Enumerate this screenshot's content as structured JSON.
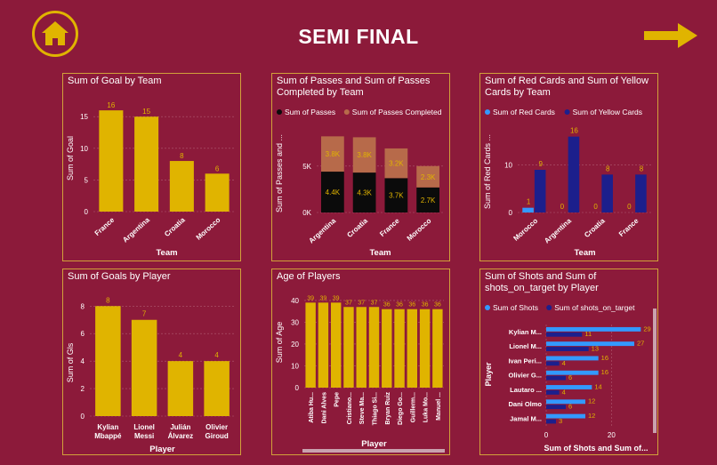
{
  "page": {
    "title": "SEMI FINAL",
    "home_icon": "home-icon",
    "next_icon": "arrow-right-icon",
    "accent_color": "#e0b400",
    "background_color": "#8c1a3a"
  },
  "chart_data": [
    {
      "id": "goal-by-team",
      "type": "bar",
      "title": "Sum of Goal by Team",
      "xlabel": "Team",
      "ylabel": "Sum of Goal",
      "categories": [
        "France",
        "Argentina",
        "Croatia",
        "Morocco"
      ],
      "values": [
        16,
        15,
        8,
        6
      ],
      "ylim": [
        0,
        17
      ],
      "yticks": [
        0,
        5,
        10,
        15
      ],
      "colors": [
        "#e0b400"
      ]
    },
    {
      "id": "passes-by-team",
      "type": "stacked-bar",
      "title": "Sum of Passes and Sum of Passes Completed by Team",
      "xlabel": "Team",
      "ylabel": "Sum of Passes and ...",
      "legend": [
        "Sum of Passes",
        "Sum of Passes Completed"
      ],
      "categories": [
        "Argentina",
        "Croatia",
        "France",
        "Morocco"
      ],
      "series": [
        {
          "name": "Sum of Passes",
          "values": [
            4.4,
            4.3,
            3.7,
            2.7
          ],
          "labels": [
            "4.4K",
            "4.3K",
            "3.7K",
            "2.7K"
          ]
        },
        {
          "name": "Sum of Passes Completed",
          "values": [
            3.8,
            3.8,
            3.2,
            2.3
          ],
          "labels": [
            "3.8K",
            "3.8K",
            "3.2K",
            "2.3K"
          ]
        }
      ],
      "ylim": [
        0,
        9
      ],
      "yticks": [
        0,
        5
      ],
      "ytick_labels": [
        "0K",
        "5K"
      ],
      "colors": [
        "#0b0b0b",
        "#b76a4a"
      ]
    },
    {
      "id": "cards-by-team",
      "type": "grouped-bar",
      "title": "Sum of Red Cards and Sum of Yellow Cards by Team",
      "xlabel": "Team",
      "ylabel": "Sum of Red Cards ...",
      "legend": [
        "Sum of Red Cards",
        "Sum of Yellow Cards"
      ],
      "categories": [
        "Morocco",
        "Argentina",
        "Croatia",
        "France"
      ],
      "series": [
        {
          "name": "Sum of Red Cards",
          "values": [
            1,
            0,
            0,
            0
          ]
        },
        {
          "name": "Sum of Yellow Cards",
          "values": [
            9,
            16,
            8,
            8
          ]
        }
      ],
      "ylim": [
        0,
        18
      ],
      "yticks": [
        0,
        10
      ],
      "colors": [
        "#3399ff",
        "#1c1f8c"
      ]
    },
    {
      "id": "goals-by-player",
      "type": "bar",
      "title": "Sum of Goals by Player",
      "xlabel": "Player",
      "ylabel": "Sum of Gls",
      "categories": [
        "Kylian Mbappé",
        "Lionel Messi",
        "Julián Álvarez",
        "Olivier Giroud"
      ],
      "values": [
        8,
        7,
        4,
        4
      ],
      "ylim": [
        0,
        8.6
      ],
      "yticks": [
        0,
        2,
        4,
        6,
        8
      ],
      "colors": [
        "#e0b400"
      ]
    },
    {
      "id": "age-of-players",
      "type": "bar",
      "title": "Age of Players",
      "xlabel": "Player",
      "ylabel": "Sum of Age",
      "categories": [
        "Atiba Hu...",
        "Dani Alves",
        "Pepe",
        "Cristiano...",
        "Steve Ma...",
        "Thiago Si...",
        "Bryan Ruiz",
        "Diego Go...",
        "Guillerm...",
        "Luka Mo...",
        "Manuel ..."
      ],
      "values": [
        39,
        39,
        39,
        37,
        37,
        37,
        36,
        36,
        36,
        36,
        36
      ],
      "ylim": [
        0,
        42
      ],
      "yticks": [
        0,
        10,
        20,
        30,
        40
      ],
      "colors": [
        "#e0b400"
      ]
    },
    {
      "id": "shots-by-player",
      "type": "horizontal-bar",
      "title": "Sum of Shots and Sum of shots_on_target by Player",
      "xlabel": "Sum of Shots and Sum of...",
      "ylabel": "Player",
      "legend": [
        "Sum of Shots",
        "Sum of shots_on_target"
      ],
      "categories": [
        "Kylian M...",
        "Lionel M...",
        "Ivan Peri...",
        "Olivier G...",
        "Lautaro ...",
        "Dani Olmo",
        "Jamal M..."
      ],
      "series": [
        {
          "name": "Sum of Shots",
          "values": [
            29,
            27,
            16,
            16,
            14,
            12,
            12
          ]
        },
        {
          "name": "Sum of shots_on_target",
          "values": [
            11,
            13,
            4,
            6,
            4,
            6,
            3
          ]
        }
      ],
      "xlim": [
        0,
        30
      ],
      "xticks": [
        0,
        20
      ],
      "colors": [
        "#3399ff",
        "#1c1f8c"
      ]
    }
  ]
}
